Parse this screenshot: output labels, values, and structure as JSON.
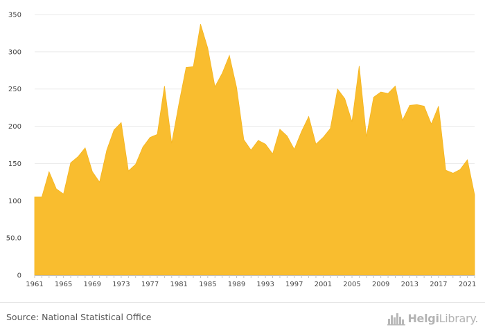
{
  "chart_data": {
    "type": "area",
    "title": "",
    "xlabel": "",
    "ylabel": "",
    "color": "#f9bd2f",
    "grid": true,
    "ylim": [
      0,
      350
    ],
    "yticks": [
      0,
      50,
      100,
      150,
      200,
      250,
      300,
      350
    ],
    "ytick_labels": [
      "0",
      "50.0",
      "100",
      "150",
      "200",
      "250",
      "300",
      "350"
    ],
    "xticks": [
      1961,
      1965,
      1969,
      1973,
      1977,
      1981,
      1985,
      1989,
      1993,
      1997,
      2001,
      2005,
      2009,
      2013,
      2017,
      2021
    ],
    "x": [
      1961,
      1962,
      1963,
      1964,
      1965,
      1966,
      1967,
      1968,
      1969,
      1970,
      1971,
      1972,
      1973,
      1974,
      1975,
      1976,
      1977,
      1978,
      1979,
      1980,
      1981,
      1982,
      1983,
      1984,
      1985,
      1986,
      1987,
      1988,
      1989,
      1990,
      1991,
      1992,
      1993,
      1994,
      1995,
      1996,
      1997,
      1998,
      1999,
      2000,
      2001,
      2002,
      2003,
      2004,
      2005,
      2006,
      2007,
      2008,
      2009,
      2010,
      2011,
      2012,
      2013,
      2014,
      2015,
      2016,
      2017,
      2018,
      2019,
      2020,
      2021,
      2022
    ],
    "values": [
      105,
      105,
      139,
      116,
      109,
      151,
      159,
      171,
      139,
      125,
      168,
      195,
      205,
      140,
      149,
      172,
      185,
      189,
      254,
      177,
      230,
      279,
      280,
      337,
      305,
      253,
      271,
      295,
      252,
      182,
      168,
      181,
      176,
      163,
      196,
      187,
      169,
      193,
      213,
      176,
      185,
      197,
      250,
      237,
      206,
      281,
      186,
      239,
      246,
      244,
      254,
      208,
      228,
      229,
      227,
      203,
      227,
      141,
      137,
      142,
      155,
      108
    ]
  },
  "footer": {
    "source": "Source: National Statistical Office",
    "brand_bold": "Helgi",
    "brand_regular": "Library."
  }
}
